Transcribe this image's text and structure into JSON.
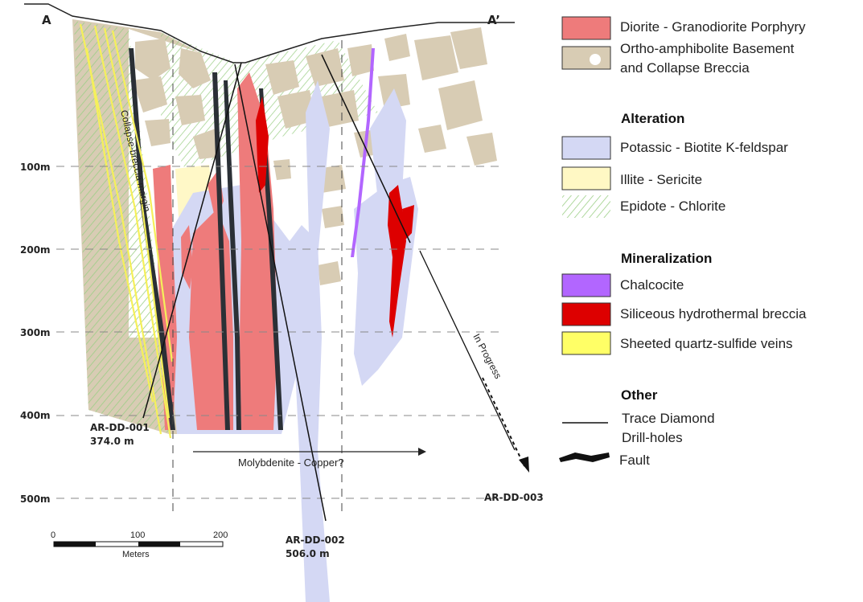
{
  "section": {
    "corner_left": "A",
    "corner_right": "A’",
    "depth_labels": [
      "100m",
      "200m",
      "300m",
      "400m",
      "500m"
    ],
    "annotation_breccia_margin": "Collapse-breccia margin",
    "annotation_molybdenite": "Molybdenite - Copper?",
    "annotation_in_progress": "In Progress",
    "drillholes": [
      {
        "id": "AR-DD-001",
        "depth": "374.0 m"
      },
      {
        "id": "AR-DD-002",
        "depth": "506.0 m"
      },
      {
        "id": "AR-DD-003",
        "depth": ""
      }
    ],
    "scale": {
      "ticks": [
        "0",
        "100",
        "200"
      ],
      "unit": "Meters"
    }
  },
  "legend": {
    "lithology": [
      {
        "label": "Diorite - Granodiorite Porphyry",
        "swatch": "diorite-swatch"
      },
      {
        "label_line1": "Ortho-amphibolite Basement",
        "label_line2": "and Collapse Breccia",
        "swatch": "basement-breccia-swatch"
      }
    ],
    "alteration_heading": "Alteration",
    "alteration": [
      {
        "label": "Potassic - Biotite K-feldspar",
        "swatch": "potassic-swatch"
      },
      {
        "label": "Illite - Sericite",
        "swatch": "illite-swatch"
      },
      {
        "label": "Epidote - Chlorite",
        "swatch": "epidote-swatch"
      }
    ],
    "mineralization_heading": "Mineralization",
    "mineralization": [
      {
        "label": "Chalcocite",
        "swatch": "chalcocite-swatch"
      },
      {
        "label": "Siliceous hydrothermal breccia",
        "swatch": "siliceous-breccia-swatch"
      },
      {
        "label": "Sheeted quartz-sulfide veins",
        "swatch": "quartz-veins-swatch"
      }
    ],
    "other_heading": "Other",
    "other": [
      {
        "label_line1": "Trace Diamond",
        "label_line2": "Drill-holes",
        "symbol": "drillhole-line-icon"
      },
      {
        "label": "Fault",
        "symbol": "fault-icon"
      }
    ]
  },
  "colors": {
    "diorite": "#ee7b7b",
    "basement": "#d4c8b0",
    "potassic": "#d4d8f4",
    "illite": "#fff8c4",
    "epidote": "#a8d890",
    "chalcocite": "#b266ff",
    "siliceous": "#dd0000",
    "quartz_veins": "#ffff66",
    "fault": "#2b3036"
  }
}
